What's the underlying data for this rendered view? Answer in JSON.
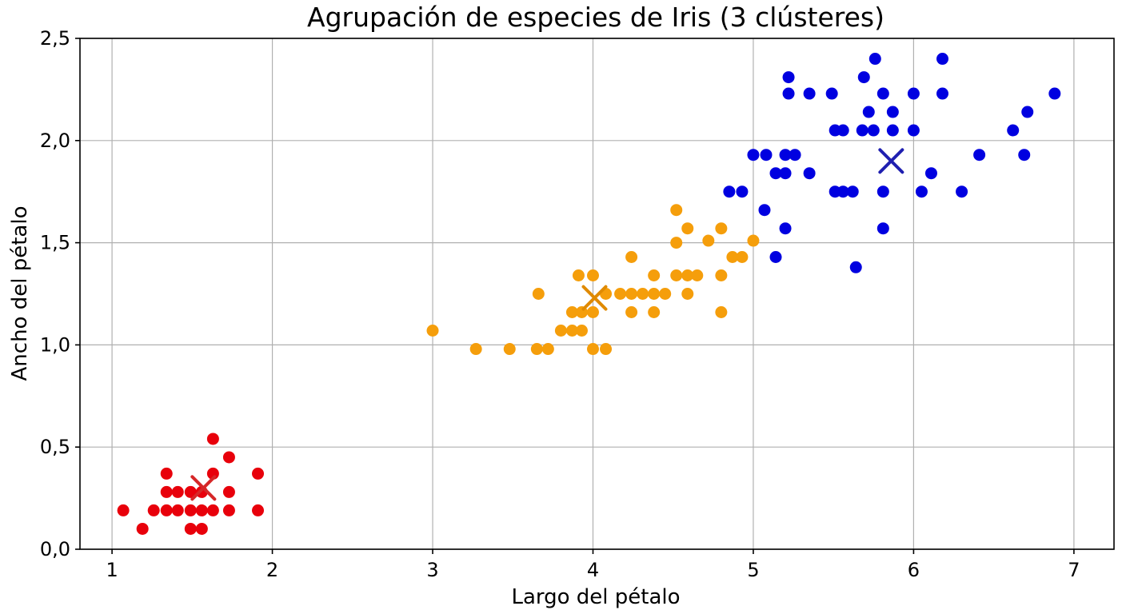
{
  "chart_data": {
    "type": "scatter",
    "title": "Agrupación de especies de Iris (3 clústeres)",
    "xlabel": "Largo del pétalo",
    "ylabel": "Ancho del pétalo",
    "xlim": [
      0.8,
      7.25
    ],
    "ylim": [
      0.0,
      2.5
    ],
    "xticks": [
      1,
      2,
      3,
      4,
      5,
      6,
      7
    ],
    "xtick_labels": [
      "1",
      "2",
      "3",
      "4",
      "5",
      "6",
      "7"
    ],
    "yticks": [
      0.0,
      0.5,
      1.0,
      1.5,
      2.0,
      2.5
    ],
    "ytick_labels": [
      "0,0",
      "0,5",
      "1,0",
      "1,5",
      "2,0",
      "2,5"
    ],
    "grid": true,
    "series": [
      {
        "color": "#e8000b",
        "centroid_color": "#d62728",
        "points": [
          [
            1.07,
            0.19
          ],
          [
            1.19,
            0.1
          ],
          [
            1.26,
            0.19
          ],
          [
            1.34,
            0.19
          ],
          [
            1.34,
            0.28
          ],
          [
            1.34,
            0.37
          ],
          [
            1.41,
            0.19
          ],
          [
            1.41,
            0.28
          ],
          [
            1.49,
            0.19
          ],
          [
            1.49,
            0.28
          ],
          [
            1.49,
            0.1
          ],
          [
            1.56,
            0.19
          ],
          [
            1.56,
            0.1
          ],
          [
            1.56,
            0.28
          ],
          [
            1.63,
            0.19
          ],
          [
            1.63,
            0.37
          ],
          [
            1.63,
            0.54
          ],
          [
            1.73,
            0.19
          ],
          [
            1.73,
            0.28
          ],
          [
            1.73,
            0.45
          ],
          [
            1.91,
            0.19
          ],
          [
            1.91,
            0.37
          ]
        ],
        "centroid": [
          1.57,
          0.3
        ]
      },
      {
        "color": "#f59e0b",
        "centroid_color": "#e08a00",
        "points": [
          [
            3.0,
            1.07
          ],
          [
            3.27,
            0.98
          ],
          [
            3.48,
            0.98
          ],
          [
            3.65,
            0.98
          ],
          [
            3.72,
            0.98
          ],
          [
            3.66,
            1.25
          ],
          [
            3.8,
            1.07
          ],
          [
            3.87,
            1.07
          ],
          [
            3.93,
            1.07
          ],
          [
            3.87,
            1.16
          ],
          [
            3.93,
            1.16
          ],
          [
            3.91,
            1.34
          ],
          [
            4.0,
            1.34
          ],
          [
            4.0,
            1.16
          ],
          [
            4.0,
            0.98
          ],
          [
            4.08,
            0.98
          ],
          [
            4.08,
            1.25
          ],
          [
            4.17,
            1.25
          ],
          [
            4.24,
            1.25
          ],
          [
            4.24,
            1.43
          ],
          [
            4.24,
            1.16
          ],
          [
            4.31,
            1.25
          ],
          [
            4.38,
            1.25
          ],
          [
            4.38,
            1.34
          ],
          [
            4.38,
            1.16
          ],
          [
            4.45,
            1.25
          ],
          [
            4.52,
            1.34
          ],
          [
            4.52,
            1.5
          ],
          [
            4.52,
            1.66
          ],
          [
            4.59,
            1.34
          ],
          [
            4.59,
            1.57
          ],
          [
            4.59,
            1.25
          ],
          [
            4.65,
            1.34
          ],
          [
            4.72,
            1.51
          ],
          [
            4.8,
            1.57
          ],
          [
            4.8,
            1.34
          ],
          [
            4.8,
            1.16
          ],
          [
            4.87,
            1.43
          ],
          [
            4.93,
            1.43
          ],
          [
            5.0,
            1.51
          ]
        ],
        "centroid": [
          4.01,
          1.23
        ]
      },
      {
        "color": "#0000e0",
        "centroid_color": "#1f1fb0",
        "points": [
          [
            4.85,
            1.75
          ],
          [
            4.93,
            1.75
          ],
          [
            5.0,
            1.93
          ],
          [
            5.07,
            1.66
          ],
          [
            5.08,
            1.93
          ],
          [
            5.14,
            1.84
          ],
          [
            5.14,
            1.43
          ],
          [
            5.2,
            1.93
          ],
          [
            5.2,
            1.57
          ],
          [
            5.2,
            1.84
          ],
          [
            5.22,
            2.31
          ],
          [
            5.22,
            2.23
          ],
          [
            5.26,
            1.93
          ],
          [
            5.35,
            1.84
          ],
          [
            5.35,
            2.23
          ],
          [
            5.49,
            2.23
          ],
          [
            5.51,
            2.05
          ],
          [
            5.51,
            1.75
          ],
          [
            5.56,
            2.05
          ],
          [
            5.56,
            1.75
          ],
          [
            5.62,
            1.75
          ],
          [
            5.64,
            1.38
          ],
          [
            5.68,
            2.05
          ],
          [
            5.69,
            2.31
          ],
          [
            5.72,
            2.14
          ],
          [
            5.75,
            2.05
          ],
          [
            5.76,
            2.4
          ],
          [
            5.81,
            2.23
          ],
          [
            5.81,
            1.75
          ],
          [
            5.81,
            1.57
          ],
          [
            5.87,
            2.14
          ],
          [
            5.87,
            2.05
          ],
          [
            6.0,
            2.23
          ],
          [
            6.0,
            2.05
          ],
          [
            6.05,
            1.75
          ],
          [
            6.11,
            1.84
          ],
          [
            6.18,
            2.4
          ],
          [
            6.18,
            2.23
          ],
          [
            6.3,
            1.75
          ],
          [
            6.41,
            1.93
          ],
          [
            6.62,
            2.05
          ],
          [
            6.69,
            1.93
          ],
          [
            6.71,
            2.14
          ],
          [
            6.88,
            2.23
          ]
        ],
        "centroid": [
          5.86,
          1.9
        ]
      }
    ]
  }
}
